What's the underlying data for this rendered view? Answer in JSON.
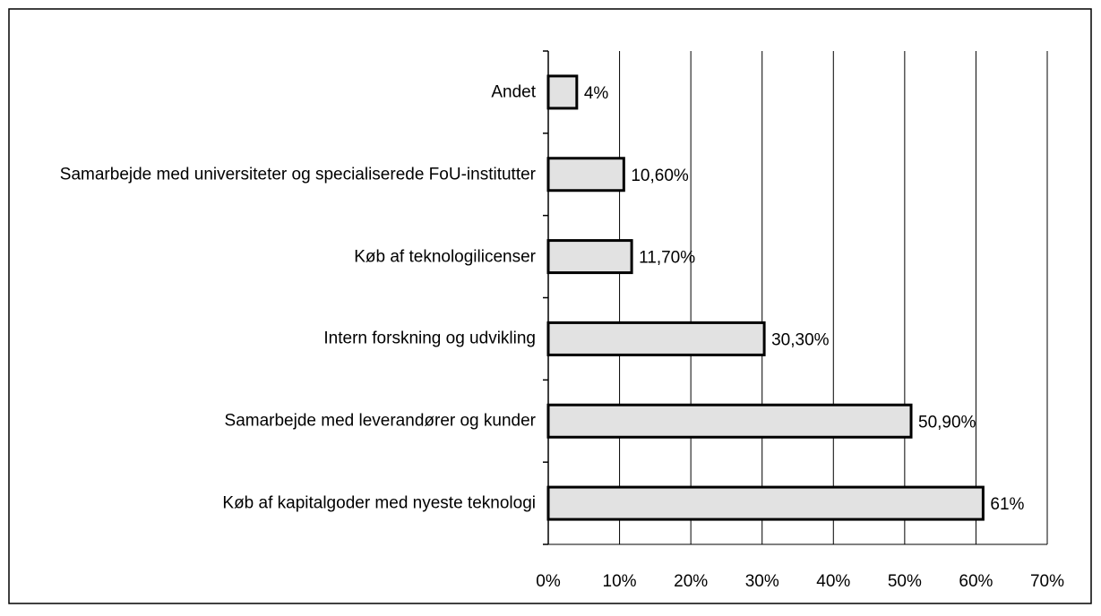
{
  "chart_data": {
    "type": "bar",
    "orientation": "horizontal",
    "categories": [
      "Andet",
      "Samarbejde med universiteter og specialiserede FoU-institutter",
      "Køb af teknologilicenser",
      "Intern forskning og udvikling",
      "Samarbejde med leverandører og kunder",
      "Køb af kapitalgoder med nyeste teknologi"
    ],
    "values": [
      4,
      10.6,
      11.7,
      30.3,
      50.9,
      61
    ],
    "value_labels": [
      "4%",
      "10,60%",
      "11,70%",
      "30,30%",
      "50,90%",
      "61%"
    ],
    "color": "#e2e2e2",
    "xlim": [
      0,
      70
    ],
    "xticks": [
      {
        "value": 0,
        "label": "0%"
      },
      {
        "value": 10,
        "label": "10%"
      },
      {
        "value": 20,
        "label": "20%"
      },
      {
        "value": 30,
        "label": "30%"
      },
      {
        "value": 40,
        "label": "40%"
      },
      {
        "value": 50,
        "label": "50%"
      },
      {
        "value": 60,
        "label": "60%"
      },
      {
        "value": 70,
        "label": "70%"
      }
    ],
    "grid": true
  }
}
